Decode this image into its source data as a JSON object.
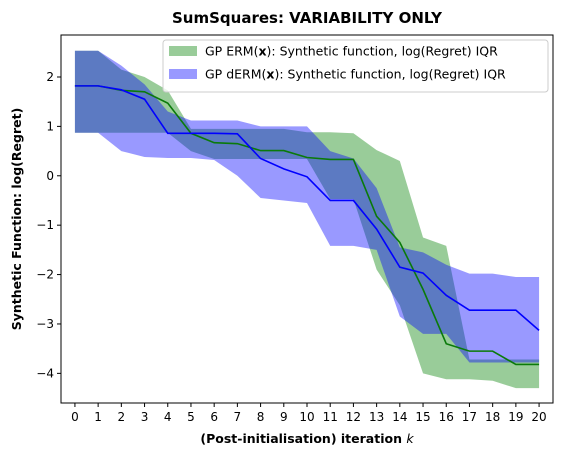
{
  "chart_data": {
    "type": "line",
    "title": "SumSquares: VARIABILITY ONLY",
    "xlabel": "(Post-initialisation) iteration",
    "xlabel_var": "k",
    "ylabel": "Synthetic Function: log(Regret)",
    "xlim": [
      -0.6,
      20.6
    ],
    "ylim": [
      -4.6,
      2.85
    ],
    "x_ticks": [
      0,
      1,
      2,
      3,
      4,
      5,
      6,
      7,
      8,
      9,
      10,
      11,
      12,
      13,
      14,
      15,
      16,
      17,
      18,
      19,
      20
    ],
    "y_ticks": [
      -4,
      -3,
      -2,
      -1,
      0,
      1,
      2
    ],
    "x": [
      0,
      1,
      2,
      3,
      4,
      5,
      6,
      7,
      8,
      9,
      10,
      11,
      12,
      13,
      14,
      15,
      16,
      17,
      18,
      19,
      20
    ],
    "legend_position": "top-right",
    "legend": [
      {
        "prefix": "GP ERM(",
        "bold": "x",
        "suffix": "):   Synthetic function, log(Regret) IQR",
        "color": "#008000"
      },
      {
        "prefix": "GP dERM(",
        "bold": "x",
        "suffix": "): Synthetic function, log(Regret) IQR",
        "color": "#0000ff"
      }
    ],
    "series": [
      {
        "name": "GP ERM(x)",
        "line_color": "#0a7a0a",
        "band_color": "#008000",
        "band_alpha": 0.4,
        "median": [
          1.82,
          1.82,
          1.73,
          1.7,
          1.47,
          0.86,
          0.67,
          0.65,
          0.51,
          0.51,
          0.37,
          0.33,
          0.33,
          -0.82,
          -1.35,
          -2.3,
          -3.4,
          -3.55,
          -3.55,
          -3.82,
          -3.82
        ],
        "lower": [
          0.87,
          0.87,
          0.87,
          0.87,
          0.87,
          0.5,
          0.34,
          0.34,
          0.34,
          0.34,
          0.34,
          -0.47,
          -0.47,
          -1.9,
          -2.62,
          -4.0,
          -4.12,
          -4.12,
          -4.15,
          -4.3,
          -4.3
        ],
        "upper": [
          2.53,
          2.53,
          2.15,
          2.0,
          1.73,
          0.95,
          0.95,
          0.95,
          0.95,
          0.95,
          0.88,
          0.88,
          0.86,
          0.52,
          0.3,
          -1.25,
          -1.42,
          -3.72,
          -3.72,
          -3.72,
          -3.72
        ]
      },
      {
        "name": "GP dERM(x)",
        "line_color": "#0000ff",
        "band_color": "#0000ff",
        "band_alpha": 0.4,
        "median": [
          1.82,
          1.82,
          1.74,
          1.55,
          0.86,
          0.86,
          0.86,
          0.85,
          0.35,
          0.14,
          -0.02,
          -0.5,
          -0.5,
          -1.08,
          -1.85,
          -1.97,
          -2.42,
          -2.72,
          -2.72,
          -2.72,
          -3.13
        ],
        "lower": [
          0.87,
          0.87,
          0.5,
          0.38,
          0.36,
          0.36,
          0.32,
          0.0,
          -0.45,
          -0.5,
          -0.55,
          -1.42,
          -1.42,
          -1.5,
          -2.85,
          -3.2,
          -3.2,
          -3.78,
          -3.78,
          -3.78,
          -3.78
        ],
        "upper": [
          2.53,
          2.53,
          2.23,
          1.85,
          1.3,
          1.12,
          1.12,
          1.12,
          1.0,
          1.0,
          1.0,
          0.5,
          0.35,
          -0.25,
          -1.45,
          -1.55,
          -1.8,
          -1.98,
          -1.98,
          -2.05,
          -2.05
        ]
      }
    ]
  }
}
